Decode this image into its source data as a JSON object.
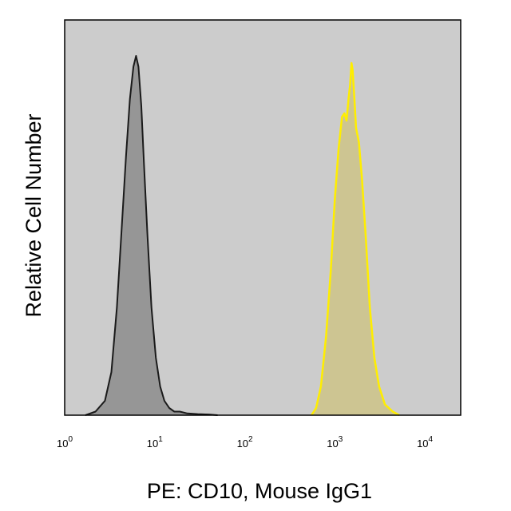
{
  "chart_data": {
    "type": "area",
    "xlabel": "PE: CD10, Mouse IgG1",
    "ylabel": "Relative Cell Number",
    "x_scale": "log",
    "xlim": [
      1,
      25000
    ],
    "ylim": [
      0,
      1.1
    ],
    "grid": false,
    "background_color": "#cccccc",
    "x_ticks": [
      {
        "base": "10",
        "exp": "0",
        "value": 1
      },
      {
        "base": "10",
        "exp": "1",
        "value": 10
      },
      {
        "base": "10",
        "exp": "2",
        "value": 100
      },
      {
        "base": "10",
        "exp": "3",
        "value": 1000
      },
      {
        "base": "10",
        "exp": "4",
        "value": 10000
      }
    ],
    "series": [
      {
        "color": "#1a1a1a",
        "fill": "#8c8c8c",
        "x": [
          1.7,
          2.2,
          2.8,
          3.3,
          3.8,
          4.3,
          4.8,
          5.3,
          5.8,
          6.2,
          6.6,
          7.1,
          7.6,
          8.3,
          9.2,
          10.3,
          11.5,
          12.8,
          14.5,
          16.5,
          19,
          23,
          30,
          40,
          50
        ],
        "y": [
          0,
          0.01,
          0.04,
          0.12,
          0.3,
          0.52,
          0.72,
          0.88,
          0.97,
          1.0,
          0.97,
          0.86,
          0.7,
          0.5,
          0.3,
          0.16,
          0.08,
          0.04,
          0.02,
          0.01,
          0.01,
          0.005,
          0.003,
          0.002,
          0
        ]
      },
      {
        "color": "#ffee00",
        "fill": "#cdc387",
        "x": [
          550,
          620,
          700,
          800,
          900,
          1000,
          1100,
          1200,
          1280,
          1350,
          1420,
          1480,
          1530,
          1580,
          1650,
          1720,
          1850,
          2000,
          2200,
          2450,
          2750,
          3100,
          3600,
          4400,
          5200
        ],
        "y": [
          0,
          0.02,
          0.08,
          0.22,
          0.4,
          0.6,
          0.74,
          0.83,
          0.84,
          0.82,
          0.88,
          0.92,
          0.98,
          0.96,
          0.88,
          0.8,
          0.76,
          0.66,
          0.5,
          0.3,
          0.16,
          0.08,
          0.03,
          0.01,
          0
        ]
      }
    ]
  }
}
